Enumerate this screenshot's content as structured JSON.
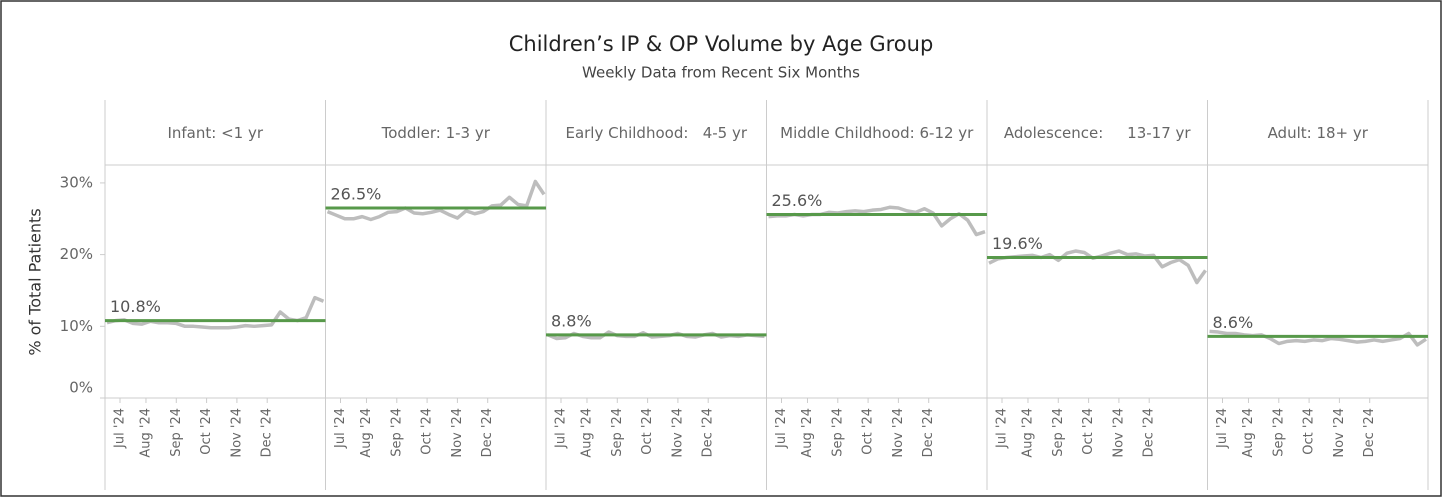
{
  "chart_data": {
    "type": "line",
    "title": "Children’s IP & OP Volume by Age Group",
    "subtitle": "Weekly Data from Recent Six Months",
    "y_label": "% of Total Patients",
    "ylim": [
      0,
      32.5
    ],
    "yticks": [
      {
        "value": 0,
        "label": "0%"
      },
      {
        "value": 10,
        "label": "10%"
      },
      {
        "value": 20,
        "label": "20%"
      },
      {
        "value": 30,
        "label": "30%"
      }
    ],
    "xlim": [
      0,
      25
    ],
    "xticks": [
      {
        "value": 1.5,
        "label": "Jul '24"
      },
      {
        "value": 4.5,
        "label": "Aug '24"
      },
      {
        "value": 8,
        "label": "Sep '24"
      },
      {
        "value": 11.5,
        "label": "Oct '24"
      },
      {
        "value": 15,
        "label": "Nov '24"
      },
      {
        "value": 18.5,
        "label": "Dec '24"
      }
    ],
    "line_color": "#bdbdbd",
    "average_color": "#57994a",
    "panels": [
      {
        "name": "Infant: <1 yr",
        "average": 10.8,
        "average_label": "10.8%",
        "values": [
          10.5,
          10.8,
          10.9,
          10.4,
          10.3,
          10.7,
          10.5,
          10.5,
          10.4,
          10.0,
          10.0,
          9.9,
          9.8,
          9.8,
          9.8,
          9.9,
          10.1,
          10.0,
          10.1,
          10.2,
          12.0,
          11.0,
          10.8,
          11.2,
          14.0,
          13.5
        ]
      },
      {
        "name": "Toddler: 1-3 yr",
        "average": 26.5,
        "average_label": "26.5%",
        "values": [
          26.0,
          25.5,
          25.0,
          25.0,
          25.3,
          24.9,
          25.3,
          25.9,
          26.0,
          26.5,
          25.8,
          25.7,
          25.9,
          26.2,
          25.6,
          25.1,
          26.1,
          25.7,
          26.0,
          26.8,
          26.9,
          28.0,
          27.0,
          26.8,
          30.2,
          28.4
        ]
      },
      {
        "name": "Early Childhood:   4-5 yr",
        "average": 8.8,
        "average_label": "8.8%",
        "values": [
          8.8,
          8.3,
          8.4,
          9.0,
          8.6,
          8.4,
          8.4,
          9.2,
          8.7,
          8.6,
          8.6,
          9.1,
          8.5,
          8.6,
          8.7,
          9.0,
          8.6,
          8.5,
          8.8,
          9.0,
          8.5,
          8.7,
          8.6,
          8.8,
          8.7,
          8.6
        ]
      },
      {
        "name": "Middle Childhood: 6-12 yr",
        "average": 25.6,
        "average_label": "25.6%",
        "values": [
          25.3,
          25.4,
          25.4,
          25.6,
          25.4,
          25.6,
          25.6,
          25.9,
          25.8,
          26.0,
          26.1,
          26.0,
          26.2,
          26.3,
          26.6,
          26.5,
          26.1,
          25.9,
          26.4,
          25.8,
          24.0,
          25.0,
          25.7,
          24.8,
          22.8,
          23.2
        ]
      },
      {
        "name": "Adolescence:     13-17 yr",
        "average": 19.6,
        "average_label": "19.6%",
        "values": [
          18.8,
          19.4,
          19.6,
          19.7,
          19.8,
          19.9,
          19.6,
          20.0,
          19.2,
          20.2,
          20.5,
          20.3,
          19.5,
          19.8,
          20.2,
          20.5,
          20.0,
          20.1,
          19.8,
          19.9,
          18.3,
          18.9,
          19.3,
          18.5,
          16.1,
          17.8
        ]
      },
      {
        "name": "Adult: 18+ yr",
        "average": 8.6,
        "average_label": "8.6%",
        "values": [
          9.3,
          9.2,
          9.0,
          9.0,
          8.8,
          8.7,
          8.8,
          8.3,
          7.6,
          7.9,
          8.0,
          7.9,
          8.1,
          8.0,
          8.3,
          8.2,
          8.0,
          7.8,
          7.9,
          8.1,
          7.9,
          8.1,
          8.3,
          9.0,
          7.4,
          8.2
        ]
      }
    ]
  }
}
